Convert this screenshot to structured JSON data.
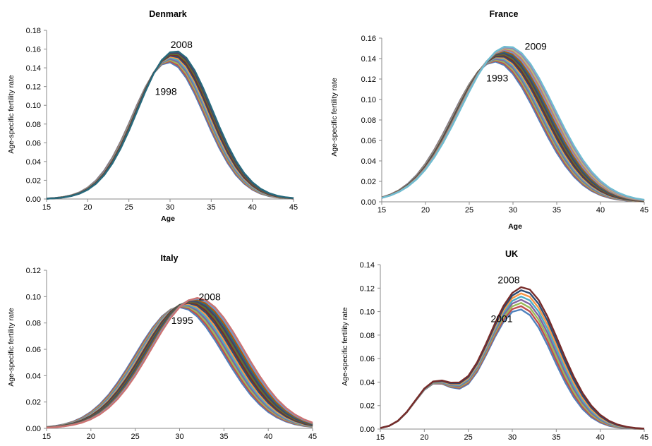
{
  "colors": [
    "#4f81bd",
    "#c0504d",
    "#9bbb59",
    "#8064a2",
    "#4bacc6",
    "#f79646",
    "#2c4d75",
    "#772c2a",
    "#5f7530",
    "#4d3b62",
    "#276a7c",
    "#b65708",
    "#729aca",
    "#cd7371",
    "#afc97a",
    "#9983b5",
    "#6fbdd1",
    "#f9ab6b",
    "#a5a5a5",
    "#95b3d7",
    "#d99795",
    "#c4d79b",
    "#b2a1c7",
    "#92cddc",
    "#fac090"
  ],
  "chart_data": [
    {
      "type": "line",
      "title": "Denmark",
      "xlabel": "Age",
      "ylabel": "Age-specific fertility rate",
      "xlim": [
        15,
        45
      ],
      "ylim": [
        0,
        0.18
      ],
      "xticks": [
        15,
        20,
        25,
        30,
        35,
        40,
        45
      ],
      "yticks": [
        "0.00",
        "0.02",
        "0.04",
        "0.06",
        "0.08",
        "0.10",
        "0.12",
        "0.14",
        "0.16",
        "0.18"
      ],
      "grid": false,
      "annotations": [
        {
          "text": "2008",
          "x": 31.4,
          "y": 0.165
        },
        {
          "text": "1998",
          "x": 29.5,
          "y": 0.115
        }
      ],
      "peak_age": {
        "start": 29.8,
        "end": 30.6
      },
      "peak": {
        "start": 0.146,
        "end": 0.158
      },
      "sd": {
        "start": 4.4,
        "end": 4.5
      },
      "years": {
        "start": 1998,
        "end": 2008
      }
    },
    {
      "type": "line",
      "title": "France",
      "xlabel": "Age",
      "ylabel": "Age-specific fertility rate",
      "xlim": [
        15,
        45
      ],
      "ylim": [
        0,
        0.16
      ],
      "xticks": [
        15,
        20,
        25,
        30,
        35,
        40,
        45
      ],
      "yticks": [
        "0.00",
        "0.02",
        "0.04",
        "0.06",
        "0.08",
        "0.10",
        "0.12",
        "0.14",
        "0.16"
      ],
      "grid": false,
      "annotations": [
        {
          "text": "2009",
          "x": 32.6,
          "y": 0.152
        },
        {
          "text": "1993",
          "x": 28.2,
          "y": 0.121
        }
      ],
      "peak_age": {
        "start": 27.9,
        "end": 29.4
      },
      "peak": {
        "start": 0.137,
        "end": 0.152
      },
      "sd": {
        "start": 4.9,
        "end": 5.3
      },
      "years": {
        "start": 1993,
        "end": 2009
      }
    },
    {
      "type": "line",
      "title": "Italy",
      "xlabel": "",
      "ylabel": "Age-specific fertility rate",
      "xlim": [
        15,
        45
      ],
      "ylim": [
        0,
        0.12
      ],
      "xticks": [
        15,
        20,
        25,
        30,
        35,
        40,
        45
      ],
      "yticks": [
        "0.00",
        "0.02",
        "0.04",
        "0.06",
        "0.08",
        "0.10",
        "0.12"
      ],
      "grid": false,
      "annotations": [
        {
          "text": "2008",
          "x": 33.4,
          "y": 0.1
        },
        {
          "text": "1995",
          "x": 30.3,
          "y": 0.082
        }
      ],
      "peak_age": {
        "start": 30.0,
        "end": 32.0
      },
      "peak": {
        "start": 0.092,
        "end": 0.099
      },
      "sd": {
        "start": 5.0,
        "end": 5.2
      },
      "years": {
        "start": 1995,
        "end": 2008
      }
    },
    {
      "type": "line",
      "title": "UK",
      "xlabel": "",
      "ylabel": "Age-specific fertility rate",
      "xlim": [
        15,
        45
      ],
      "ylim": [
        0,
        0.14
      ],
      "xticks": [
        15,
        20,
        25,
        30,
        35,
        40,
        45
      ],
      "yticks": [
        "0.00",
        "0.02",
        "0.04",
        "0.06",
        "0.08",
        "0.10",
        "0.12",
        "0.14"
      ],
      "grid": false,
      "annotations": [
        {
          "text": "2008",
          "x": 29.6,
          "y": 0.127
        },
        {
          "text": "2001",
          "x": 28.8,
          "y": 0.094
        }
      ],
      "shoulder_age": 21.0,
      "peak_age": {
        "start": 30.8,
        "end": 31.2
      },
      "peak": {
        "start": 0.102,
        "end": 0.121
      },
      "sd": {
        "start": 3.8,
        "end": 4.1
      },
      "years": {
        "start": 2001,
        "end": 2008
      }
    }
  ]
}
